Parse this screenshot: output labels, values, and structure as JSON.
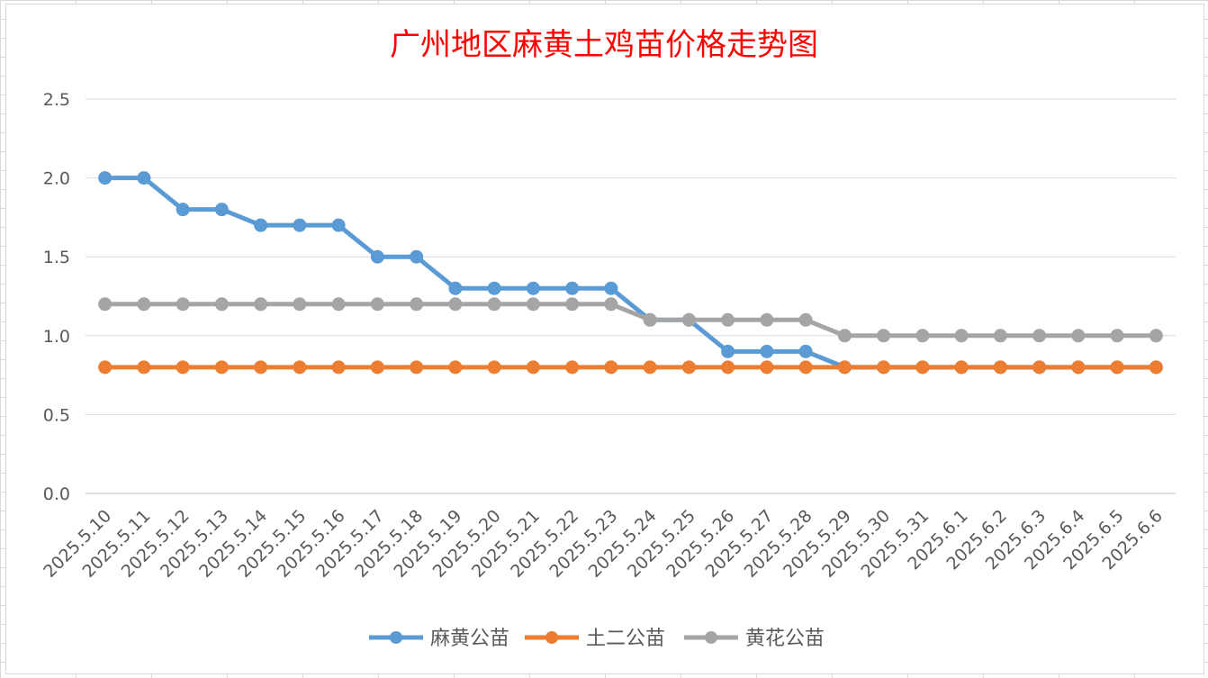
{
  "chart_data": {
    "type": "line",
    "title": "广州地区麻黄土鸡苗价格走势图",
    "xlabel": "",
    "ylabel": "",
    "ylim": [
      0,
      2.5
    ],
    "yticks": [
      "0.0",
      "0.5",
      "1.0",
      "1.5",
      "2.0",
      "2.5"
    ],
    "grid": true,
    "legend_position": "bottom",
    "categories": [
      "2025.5.10",
      "2025.5.11",
      "2025.5.12",
      "2025.5.13",
      "2025.5.14",
      "2025.5.15",
      "2025.5.16",
      "2025.5.17",
      "2025.5.18",
      "2025.5.19",
      "2025.5.20",
      "2025.5.21",
      "2025.5.22",
      "2025.5.23",
      "2025.5.24",
      "2025.5.25",
      "2025.5.26",
      "2025.5.27",
      "2025.5.28",
      "2025.5.29",
      "2025.5.30",
      "2025.5.31",
      "2025.6.1",
      "2025.6.2",
      "2025.6.3",
      "2025.6.4",
      "2025.6.5",
      "2025.6.6"
    ],
    "series": [
      {
        "name": "麻黄公苗",
        "color": "#5b9bd5",
        "values": [
          2.0,
          2.0,
          1.8,
          1.8,
          1.7,
          1.7,
          1.7,
          1.5,
          1.5,
          1.3,
          1.3,
          1.3,
          1.3,
          1.3,
          1.1,
          1.1,
          0.9,
          0.9,
          0.9,
          0.8,
          0.8,
          0.8,
          0.8,
          0.8,
          0.8,
          0.8,
          0.8,
          0.8
        ]
      },
      {
        "name": "黄花公苗",
        "color": "#a5a5a5",
        "values": [
          1.2,
          1.2,
          1.2,
          1.2,
          1.2,
          1.2,
          1.2,
          1.2,
          1.2,
          1.2,
          1.2,
          1.2,
          1.2,
          1.2,
          1.1,
          1.1,
          1.1,
          1.1,
          1.1,
          1.0,
          1.0,
          1.0,
          1.0,
          1.0,
          1.0,
          1.0,
          1.0,
          1.0
        ]
      },
      {
        "name": "土二公苗",
        "color": "#ed7d31",
        "values": [
          0.8,
          0.8,
          0.8,
          0.8,
          0.8,
          0.8,
          0.8,
          0.8,
          0.8,
          0.8,
          0.8,
          0.8,
          0.8,
          0.8,
          0.8,
          0.8,
          0.8,
          0.8,
          0.8,
          0.8,
          0.8,
          0.8,
          0.8,
          0.8,
          0.8,
          0.8,
          0.8,
          0.8
        ]
      }
    ],
    "legend_order": [
      "麻黄公苗",
      "土二公苗",
      "黄花公苗"
    ]
  }
}
